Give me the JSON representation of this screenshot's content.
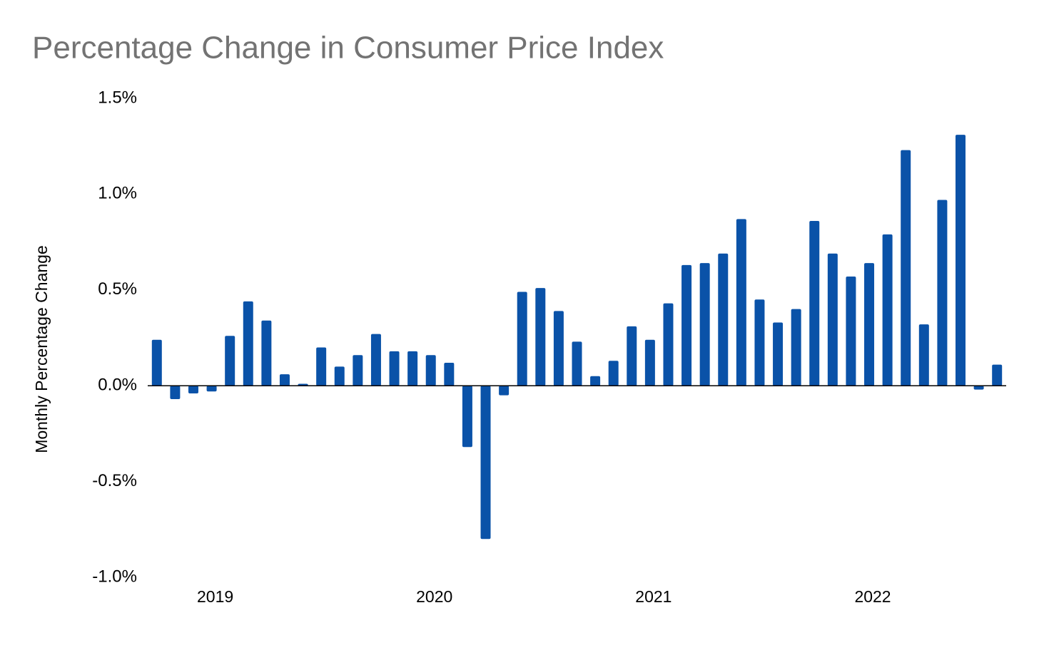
{
  "chart_data": {
    "type": "bar",
    "title": "Percentage Change in Consumer Price Index",
    "y_label": "Monthly Percentage Change",
    "color": "#0a52a8",
    "categories": [
      null,
      null,
      null,
      "2019",
      null,
      null,
      null,
      null,
      null,
      null,
      null,
      null,
      null,
      null,
      null,
      "2020",
      null,
      null,
      null,
      null,
      null,
      null,
      null,
      null,
      null,
      null,
      null,
      "2021",
      null,
      null,
      null,
      null,
      null,
      null,
      null,
      null,
      null,
      null,
      null,
      "2022",
      null,
      null,
      null,
      null,
      null,
      null,
      null
    ],
    "values": [
      0.24,
      -0.07,
      -0.04,
      -0.03,
      0.26,
      0.44,
      0.34,
      0.06,
      0.01,
      0.2,
      0.1,
      0.16,
      0.27,
      0.18,
      0.18,
      0.16,
      0.12,
      -0.32,
      -0.8,
      -0.05,
      0.49,
      0.51,
      0.39,
      0.23,
      0.05,
      0.13,
      0.31,
      0.24,
      0.43,
      0.63,
      0.64,
      0.69,
      0.87,
      0.45,
      0.33,
      0.4,
      0.86,
      0.69,
      0.57,
      0.64,
      0.79,
      1.23,
      0.32,
      0.97,
      1.31,
      -0.02,
      0.11
    ],
    "ylim": [
      -1.0,
      1.5
    ],
    "yticks": [
      {
        "value": -1.0,
        "label": "-1.0%"
      },
      {
        "value": -0.5,
        "label": "-0.5%"
      },
      {
        "value": 0,
        "label": "0.0%"
      },
      {
        "value": 0.5,
        "label": "0.5%"
      },
      {
        "value": 1.0,
        "label": "1.0%"
      },
      {
        "value": 1.5,
        "label": "1.5%"
      }
    ],
    "grid": false
  }
}
